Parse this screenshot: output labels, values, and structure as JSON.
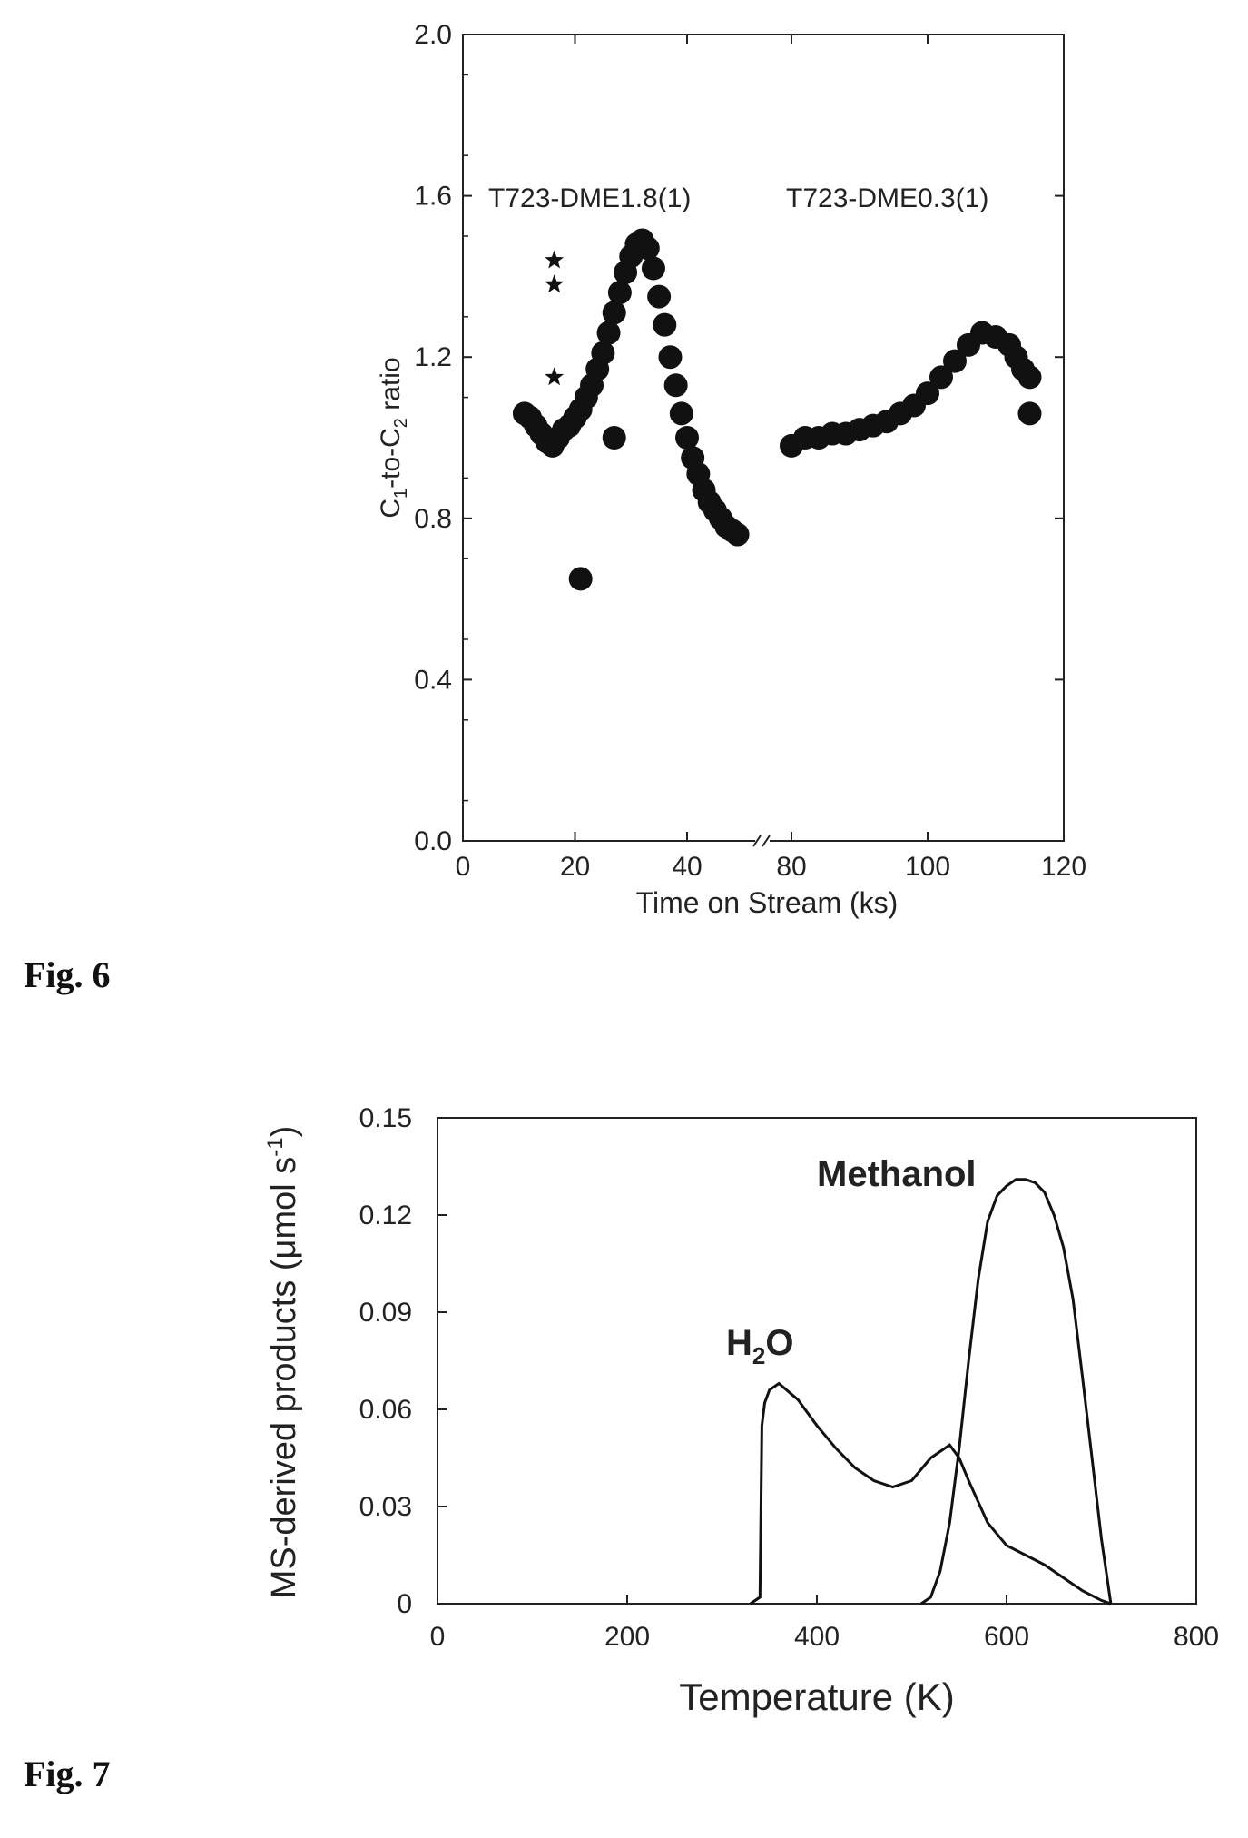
{
  "figures": {
    "fig6_label": "Fig. 6",
    "fig7_label": "Fig. 7"
  },
  "chart_data": [
    {
      "type": "scatter",
      "title": "",
      "xlabel": "Time on Stream (ks)",
      "ylabel": "C1-to-C2 ratio",
      "ylabel_parts": {
        "a": "C",
        "b": "1",
        "c": "-to-C",
        "d": "2",
        "e": " ratio"
      },
      "xlim": [
        0,
        120
      ],
      "ylim": [
        0.0,
        2.0
      ],
      "x_break": "between 50 and 80",
      "x_ticks": [
        0,
        20,
        40,
        80,
        100,
        120
      ],
      "x_tick_labels": [
        "0",
        "20",
        "40",
        "80",
        "100",
        "120"
      ],
      "y_ticks": [
        0.0,
        0.4,
        0.8,
        1.2,
        1.6,
        2.0
      ],
      "y_tick_labels": [
        "0.0",
        "0.4",
        "0.8",
        "1.2",
        "1.6",
        "2.0"
      ],
      "annotations": [
        "T723-DME1.8(1)",
        "T723-DME0.3(1)"
      ],
      "series": [
        {
          "marker": "circle",
          "points": [
            [
              11,
              1.06
            ],
            [
              12,
              1.05
            ],
            [
              13,
              1.03
            ],
            [
              14,
              1.01
            ],
            [
              15,
              0.99
            ],
            [
              16,
              0.98
            ],
            [
              17,
              1.0
            ],
            [
              18,
              1.02
            ],
            [
              19,
              1.03
            ],
            [
              20,
              1.05
            ],
            [
              21,
              1.07
            ],
            [
              22,
              1.1
            ],
            [
              23,
              1.13
            ],
            [
              24,
              1.17
            ],
            [
              25,
              1.21
            ],
            [
              26,
              1.26
            ],
            [
              27,
              1.31
            ],
            [
              28,
              1.36
            ],
            [
              29,
              1.41
            ],
            [
              30,
              1.45
            ],
            [
              31,
              1.48
            ],
            [
              32,
              1.49
            ],
            [
              33,
              1.47
            ],
            [
              34,
              1.42
            ],
            [
              35,
              1.35
            ],
            [
              36,
              1.28
            ],
            [
              37,
              1.2
            ],
            [
              38,
              1.13
            ],
            [
              39,
              1.06
            ],
            [
              40,
              1.0
            ],
            [
              41,
              0.95
            ],
            [
              42,
              0.91
            ],
            [
              43,
              0.87
            ],
            [
              44,
              0.84
            ],
            [
              45,
              0.82
            ],
            [
              46,
              0.8
            ],
            [
              47,
              0.78
            ],
            [
              48,
              0.77
            ],
            [
              49,
              0.76
            ],
            [
              80,
              0.98
            ],
            [
              82,
              1.0
            ],
            [
              84,
              1.0
            ],
            [
              86,
              1.01
            ],
            [
              88,
              1.01
            ],
            [
              90,
              1.02
            ],
            [
              92,
              1.03
            ],
            [
              94,
              1.04
            ],
            [
              96,
              1.06
            ],
            [
              98,
              1.08
            ],
            [
              100,
              1.11
            ],
            [
              102,
              1.15
            ],
            [
              104,
              1.19
            ],
            [
              106,
              1.23
            ],
            [
              108,
              1.26
            ],
            [
              110,
              1.25
            ],
            [
              112,
              1.23
            ],
            [
              113,
              1.2
            ],
            [
              114,
              1.17
            ],
            [
              115,
              1.15
            ],
            [
              21,
              0.65
            ],
            [
              27,
              1.0
            ],
            [
              115,
              1.06
            ]
          ]
        },
        {
          "marker": "star",
          "points": [
            [
              15,
              1.44
            ],
            [
              15,
              1.38
            ],
            [
              15,
              1.15
            ]
          ]
        }
      ]
    },
    {
      "type": "line",
      "title": "",
      "xlabel": "Temperature (K)",
      "ylabel": "MS-derived products (μmol s⁻¹)",
      "ylabel_parts": {
        "a": "MS-derived products (μmol s",
        "b": "-1",
        "c": ")"
      },
      "xlim": [
        0,
        800
      ],
      "ylim": [
        0,
        0.15
      ],
      "x_ticks": [
        0,
        200,
        400,
        600,
        800
      ],
      "x_tick_labels": [
        "0",
        "200",
        "400",
        "600",
        "800"
      ],
      "y_ticks": [
        0,
        0.03,
        0.06,
        0.09,
        0.12,
        0.15
      ],
      "y_tick_labels": [
        "0",
        "0.03",
        "0.06",
        "0.09",
        "0.12",
        "0.15"
      ],
      "series": [
        {
          "name": "H2O",
          "label_parts": {
            "a": "H",
            "b": "2",
            "c": "O"
          },
          "x": [
            330,
            340,
            342,
            345,
            350,
            360,
            380,
            400,
            420,
            440,
            460,
            480,
            500,
            520,
            540,
            550,
            560,
            580,
            600,
            620,
            640,
            660,
            680,
            700,
            710
          ],
          "y": [
            0.0,
            0.002,
            0.055,
            0.062,
            0.066,
            0.068,
            0.063,
            0.055,
            0.048,
            0.042,
            0.038,
            0.036,
            0.038,
            0.045,
            0.049,
            0.045,
            0.038,
            0.025,
            0.018,
            0.015,
            0.012,
            0.008,
            0.004,
            0.001,
            0.0
          ]
        },
        {
          "name": "Methanol",
          "x": [
            510,
            520,
            530,
            540,
            550,
            560,
            570,
            580,
            590,
            600,
            610,
            620,
            630,
            640,
            650,
            660,
            670,
            680,
            690,
            700,
            710
          ],
          "y": [
            0.0,
            0.002,
            0.01,
            0.025,
            0.048,
            0.075,
            0.1,
            0.118,
            0.126,
            0.129,
            0.131,
            0.131,
            0.13,
            0.127,
            0.12,
            0.11,
            0.094,
            0.07,
            0.045,
            0.02,
            0.0
          ]
        }
      ]
    }
  ]
}
